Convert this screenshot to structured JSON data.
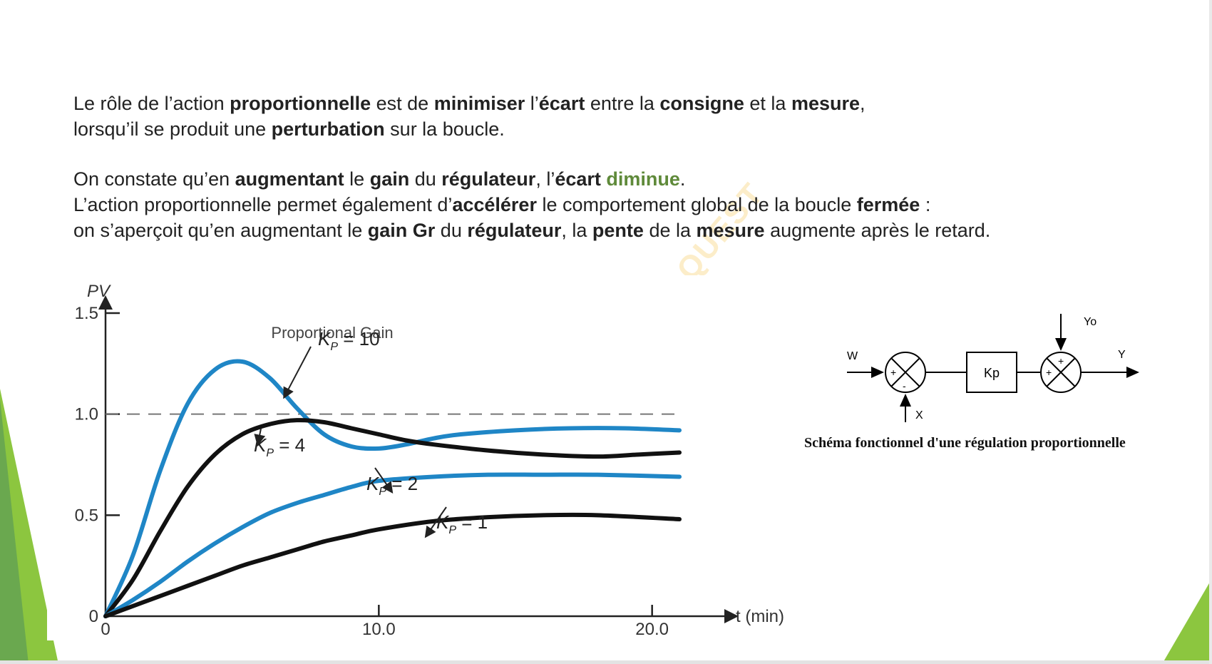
{
  "text": {
    "p1_a": "Le rôle de l’action ",
    "p1_b": "proportionnelle",
    "p1_c": " est de ",
    "p1_d": "minimiser",
    "p1_e": " l’",
    "p1_f": "écart",
    "p1_g": " entre la ",
    "p1_h": "consigne",
    "p1_i": " et la ",
    "p1_j": "mesure",
    "p1_k": ",",
    "p2_a": "lorsqu’il se produit une ",
    "p2_b": "perturbation",
    "p2_c": " sur la boucle.",
    "p3_a": "On constate qu’en ",
    "p3_b": "augmentant",
    "p3_c": " le ",
    "p3_d": "gain",
    "p3_e": " du ",
    "p3_f": "régulateur",
    "p3_g": ", l’",
    "p3_h": "écart",
    "p3_i": " ",
    "p3_j": "diminue",
    "p3_k": ".",
    "p4_a": "L’action proportionnelle permet également d’",
    "p4_b": "accélérer",
    "p4_c": " le comportement global de la boucle ",
    "p4_d": "fermée",
    "p4_e": " :",
    "p5_a": "on s’aperçoit qu’en augmentant le ",
    "p5_b": "gain Gr",
    "p5_c": " du ",
    "p5_d": "régulateur",
    "p5_e": ", la ",
    "p5_f": "pente",
    "p5_g": " de la ",
    "p5_h": "mesure",
    "p5_i": " augmente après le retard."
  },
  "watermark": "QUEST",
  "chart_data": {
    "type": "line",
    "title": "Proportional Gain",
    "ylabel": "PV",
    "xlabel": "t (min)",
    "xlim": [
      0,
      21
    ],
    "ylim": [
      0,
      1.5
    ],
    "x_ticks": [
      "0",
      "10.0",
      "20.0"
    ],
    "y_ticks": [
      "0",
      "0.5",
      "1.0",
      "1.5"
    ],
    "setpoint": 1.0,
    "series": [
      {
        "name": "K_P = 10",
        "label_main": "K",
        "label_sub": "P",
        "label_val": " = 10",
        "color": "#1f86c6",
        "x": [
          0,
          1,
          2,
          3,
          4,
          5,
          6,
          7,
          8,
          9,
          10,
          11,
          12,
          13,
          15,
          17,
          19,
          21
        ],
        "y": [
          0,
          0.3,
          0.72,
          1.05,
          1.22,
          1.26,
          1.18,
          1.03,
          0.9,
          0.84,
          0.83,
          0.85,
          0.88,
          0.9,
          0.92,
          0.93,
          0.93,
          0.92
        ]
      },
      {
        "name": "K_P = 4",
        "label_main": "K",
        "label_sub": "P",
        "label_val": " = 4",
        "color": "#111111",
        "x": [
          0,
          1,
          2,
          3,
          4,
          5,
          6,
          7,
          8,
          9,
          10,
          11,
          12,
          14,
          16,
          18,
          19.5,
          21
        ],
        "y": [
          0,
          0.18,
          0.42,
          0.64,
          0.8,
          0.9,
          0.95,
          0.97,
          0.96,
          0.93,
          0.9,
          0.87,
          0.85,
          0.82,
          0.8,
          0.79,
          0.8,
          0.81
        ]
      },
      {
        "name": "K_P = 2",
        "label_main": "K",
        "label_sub": "P",
        "label_val": " = 2",
        "color": "#1f86c6",
        "x": [
          0,
          1,
          2,
          3,
          4,
          5,
          6,
          7,
          8,
          9,
          10,
          12,
          14,
          16,
          18,
          21
        ],
        "y": [
          0,
          0.08,
          0.17,
          0.27,
          0.36,
          0.44,
          0.51,
          0.56,
          0.6,
          0.64,
          0.67,
          0.69,
          0.7,
          0.7,
          0.7,
          0.69
        ]
      },
      {
        "name": "K_P = 1",
        "label_main": "K",
        "label_sub": "P",
        "label_val": " = 1",
        "color": "#111111",
        "x": [
          0,
          1,
          2,
          3,
          4,
          5,
          6,
          7,
          8,
          9,
          10,
          12,
          14,
          16,
          18,
          21
        ],
        "y": [
          0,
          0.05,
          0.1,
          0.15,
          0.2,
          0.25,
          0.29,
          0.33,
          0.37,
          0.4,
          0.43,
          0.47,
          0.49,
          0.5,
          0.5,
          0.48
        ]
      }
    ]
  },
  "diagram": {
    "label_w": "W",
    "label_x": "X",
    "label_yo": "Yo",
    "label_y": "Y",
    "block": "Kp",
    "sum1_top": "+",
    "sum1_bottom": "-",
    "sum2_top": "+",
    "sum2_left": "+",
    "caption": "Schéma fonctionnel d'une régulation proportionnelle"
  },
  "colors": {
    "accent_green": "#8cc63f",
    "curve_blue": "#1f86c6",
    "curve_black": "#111111"
  }
}
